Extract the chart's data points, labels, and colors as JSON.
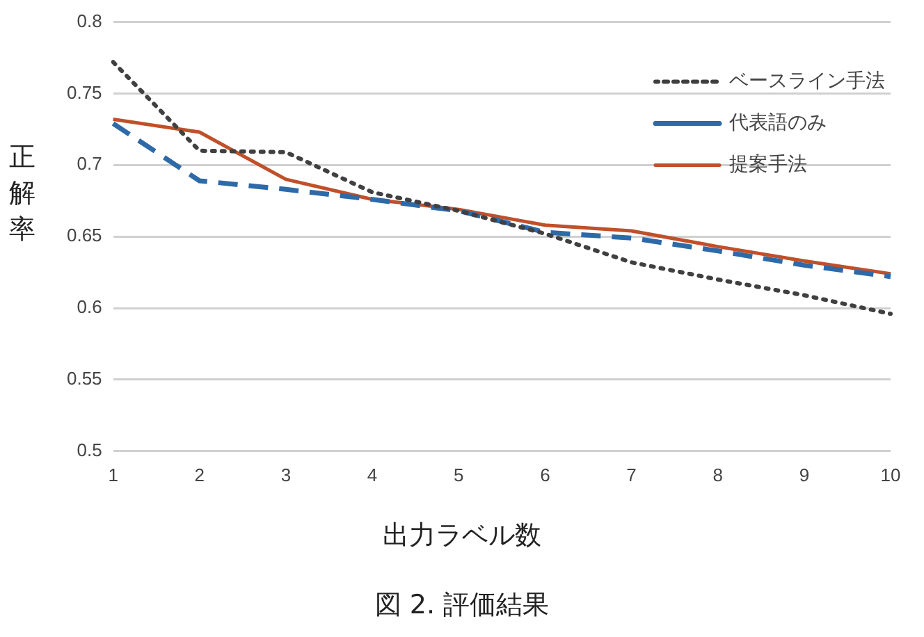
{
  "chart_data": {
    "type": "line",
    "ylabel": "正解率",
    "xlabel": "出力ラベル数",
    "annotations": [
      "図 2.  評価結果"
    ],
    "categories": [
      "1",
      "2",
      "3",
      "4",
      "5",
      "6",
      "7",
      "8",
      "9",
      "10"
    ],
    "series": [
      {
        "name": "ベースライン手法",
        "color": "#404040",
        "line_style": "dotted",
        "values": [
          0.772,
          0.71,
          0.709,
          0.681,
          0.668,
          0.652,
          0.632,
          0.62,
          0.609,
          0.596
        ]
      },
      {
        "name": "代表語のみ",
        "color": "#2e6aa8",
        "line_style": "dashed",
        "values": [
          0.729,
          0.689,
          0.683,
          0.676,
          0.668,
          0.653,
          0.649,
          0.64,
          0.63,
          0.622
        ]
      },
      {
        "name": "提案手法",
        "color": "#c0502a",
        "line_style": "solid",
        "values": [
          0.732,
          0.723,
          0.69,
          0.676,
          0.669,
          0.658,
          0.654,
          0.643,
          0.633,
          0.624
        ]
      }
    ],
    "ylim": [
      0.5,
      0.8
    ],
    "yticks": [
      0.5,
      0.55,
      0.6,
      0.65,
      0.7,
      0.75,
      0.8
    ],
    "grid": "y",
    "legend": "top right",
    "marker": "none"
  }
}
